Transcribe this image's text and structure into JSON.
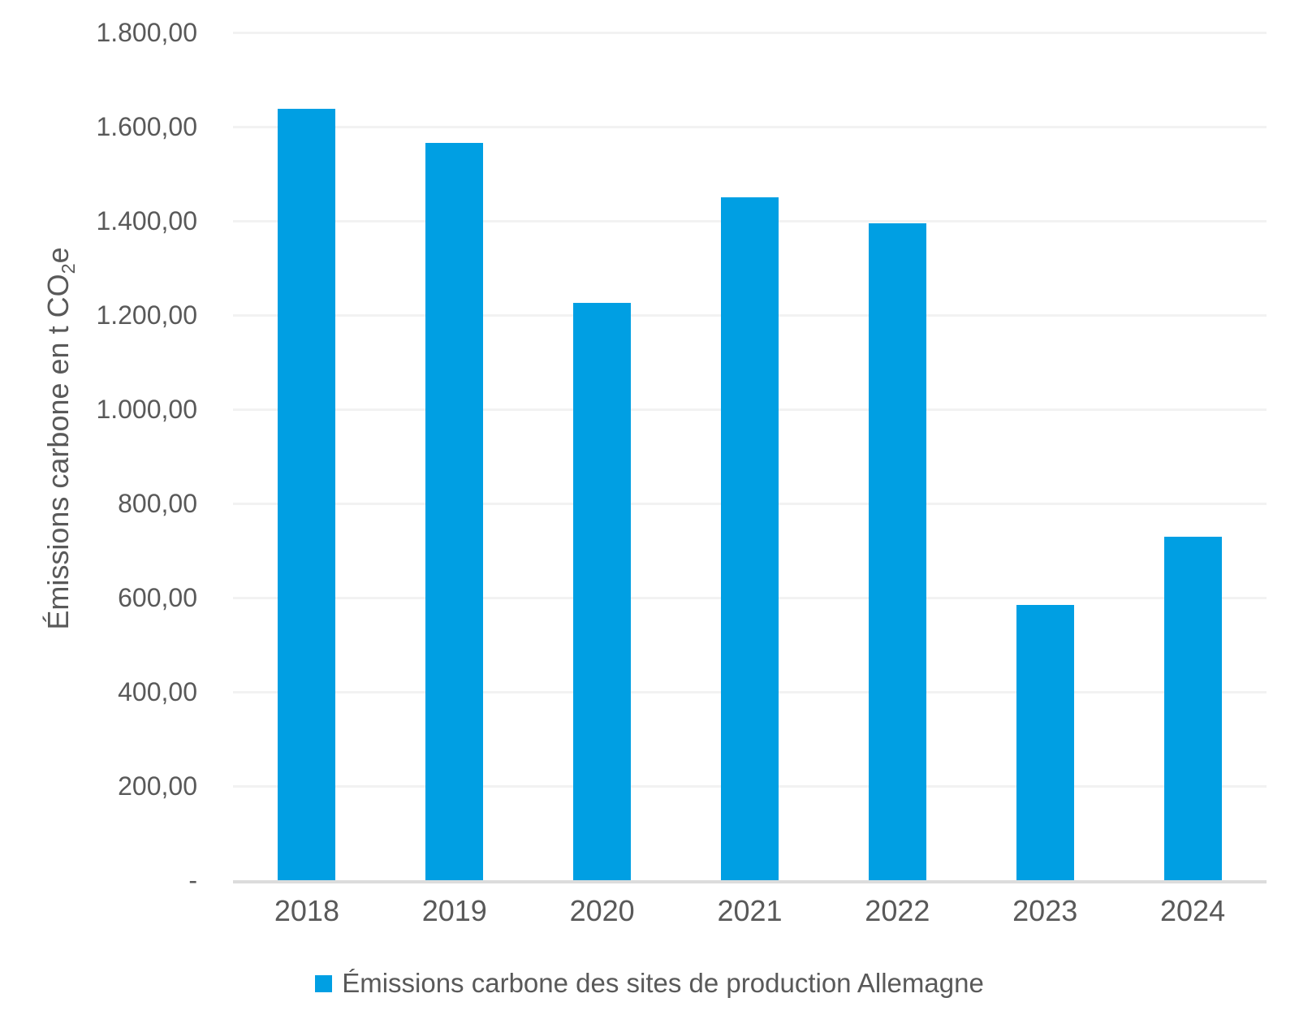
{
  "chart_data": {
    "type": "bar",
    "categories": [
      "2018",
      "2019",
      "2020",
      "2021",
      "2022",
      "2023",
      "2024"
    ],
    "values": [
      1638,
      1566,
      1226,
      1450,
      1395,
      584,
      729
    ],
    "series_name": "Émissions carbone des sites de production Allemagne",
    "title": "",
    "xlabel": "",
    "ylabel": "Émissions carbone en t CO₂e",
    "ylabel_prefix": "Émissions carbone en t CO",
    "ylabel_sub": "2",
    "ylabel_suffix": "e",
    "ylim": [
      0,
      1800
    ],
    "ytick_step": 200,
    "yticks": [
      {
        "value": 1800,
        "label": "1.800,00"
      },
      {
        "value": 1600,
        "label": "1.600,00"
      },
      {
        "value": 1400,
        "label": "1.400,00"
      },
      {
        "value": 1200,
        "label": "1.200,00"
      },
      {
        "value": 1000,
        "label": "1.000,00"
      },
      {
        "value": 800,
        "label": "800,00"
      },
      {
        "value": 600,
        "label": "600,00"
      },
      {
        "value": 400,
        "label": "400,00"
      },
      {
        "value": 200,
        "label": "200,00"
      },
      {
        "value": 0,
        "label": "-"
      }
    ],
    "grid": true,
    "legend_position": "bottom",
    "legend": "Émissions carbone des sites de production Allemagne",
    "colors": {
      "bar": "#009FE3",
      "gridline": "#F2F2F2",
      "axis_line": "#DCDCDC",
      "text": "#595959"
    }
  }
}
